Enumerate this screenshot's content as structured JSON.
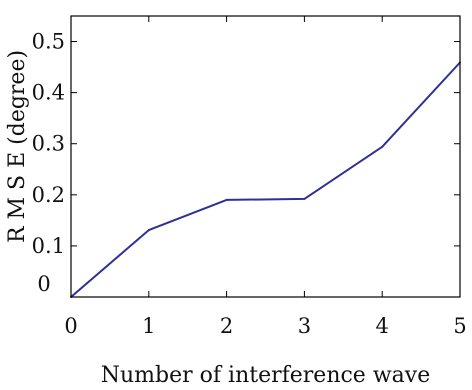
{
  "chart_data": {
    "type": "line",
    "title": "",
    "xlabel": "Number of interference wave",
    "ylabel": "R M S E (degree)",
    "x": [
      0,
      1,
      2,
      3,
      4,
      5
    ],
    "xlim": [
      0,
      5
    ],
    "ylim": [
      0,
      0.55
    ],
    "x_ticks": [
      0,
      1,
      2,
      3,
      4,
      5
    ],
    "x_tick_labels": [
      "0",
      "1",
      "2",
      "3",
      "4",
      "5"
    ],
    "y_ticks": [
      0,
      0.1,
      0.2,
      0.3,
      0.4,
      0.5
    ],
    "y_tick_labels": [
      "0",
      "0.1",
      "0.2",
      "0.3",
      "0.4",
      "0.5"
    ],
    "grid": false,
    "series": [
      {
        "values": [
          0.0,
          0.131,
          0.19,
          0.192,
          0.294,
          0.459
        ],
        "color": "#2e3192"
      }
    ]
  }
}
